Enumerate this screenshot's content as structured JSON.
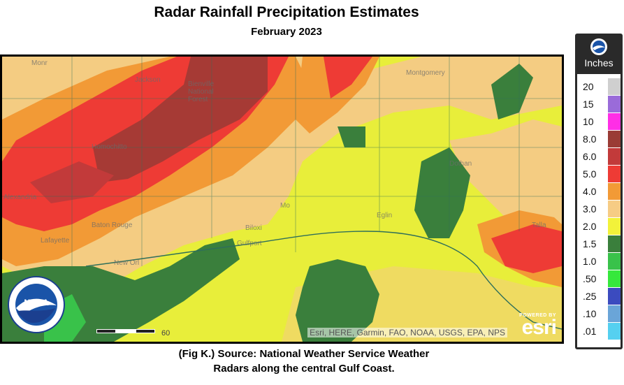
{
  "title": "Radar Rainfall Precipitation Estimates",
  "subtitle": "February 2023",
  "caption_line1": "(Fig K.) Source: National Weather Service Weather",
  "caption_line2": "Radars along the central Gulf Coast.",
  "map": {
    "attribution": "Esri, HERE, Garmin, FAO, NOAA, USGS, EPA, NPS",
    "powered_by": "POWERED BY",
    "esri": "esri",
    "scale_label": "60",
    "noaa_badge_text": "NOAA",
    "places": [
      {
        "id": "monroe",
        "label": "Monr"
      },
      {
        "id": "jackson",
        "label": "Jackson"
      },
      {
        "id": "bienville",
        "label": "Bienville National Forest"
      },
      {
        "id": "montgomery",
        "label": "Montgomery"
      },
      {
        "id": "dothan",
        "label": "Dothan"
      },
      {
        "id": "lafayette",
        "label": "Lafayette"
      },
      {
        "id": "baton-rouge",
        "label": "Baton Rouge"
      },
      {
        "id": "new-orleans",
        "label": "New Orl"
      },
      {
        "id": "biloxi",
        "label": "Biloxi"
      },
      {
        "id": "gulfport",
        "label": "Gulfport"
      },
      {
        "id": "mobile",
        "label": "Mo"
      },
      {
        "id": "tallahassee",
        "label": "Talla"
      },
      {
        "id": "eglin",
        "label": "Eglin"
      },
      {
        "id": "alexandria",
        "label": "Alexandria"
      },
      {
        "id": "tuscaloosa",
        "label": "Homochitto"
      }
    ]
  },
  "legend": {
    "unit": "Inches",
    "items": [
      {
        "label": "20",
        "color": "#cfcfcf"
      },
      {
        "label": "15",
        "color": "#9a6bd9"
      },
      {
        "label": "10",
        "color": "#ff2ee6"
      },
      {
        "label": "8.0",
        "color": "#9a3b35"
      },
      {
        "label": "6.0",
        "color": "#c23a3a"
      },
      {
        "label": "5.0",
        "color": "#ee3b35"
      },
      {
        "label": "4.0",
        "color": "#f29a36"
      },
      {
        "label": "3.0",
        "color": "#f6cc85"
      },
      {
        "label": "2.0",
        "color": "#f2f23a"
      },
      {
        "label": "1.5",
        "color": "#3a7f3c"
      },
      {
        "label": "1.0",
        "color": "#39c24a"
      },
      {
        "label": ".50",
        "color": "#36e83c"
      },
      {
        "label": ".25",
        "color": "#3b4bbf"
      },
      {
        "label": ".10",
        "color": "#6aa5d8"
      },
      {
        "label": ".01",
        "color": "#55d0f0"
      }
    ]
  }
}
